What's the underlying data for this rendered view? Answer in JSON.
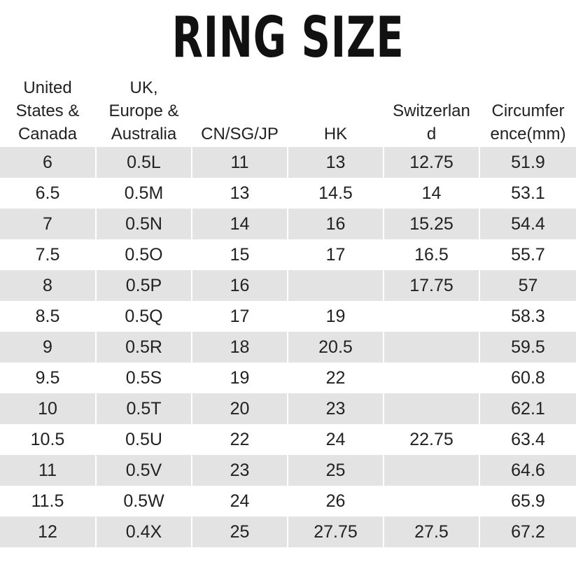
{
  "title": "RING SIZE",
  "headers": [
    "United\nStates &\nCanada",
    "UK,\nEurope &\nAustralia",
    "CN/SG/JP",
    "HK",
    "Switzerlan\nd",
    "Circumfer\nence(mm)"
  ],
  "rows": [
    [
      "6",
      "0.5L",
      "11",
      "13",
      "12.75",
      "51.9"
    ],
    [
      "6.5",
      "0.5M",
      "13",
      "14.5",
      "14",
      "53.1"
    ],
    [
      "7",
      "0.5N",
      "14",
      "16",
      "15.25",
      "54.4"
    ],
    [
      "7.5",
      "0.5O",
      "15",
      "17",
      "16.5",
      "55.7"
    ],
    [
      "8",
      "0.5P",
      "16",
      "",
      "17.75",
      "57"
    ],
    [
      "8.5",
      "0.5Q",
      "17",
      "19",
      "",
      "58.3"
    ],
    [
      "9",
      "0.5R",
      "18",
      "20.5",
      "",
      "59.5"
    ],
    [
      "9.5",
      "0.5S",
      "19",
      "22",
      "",
      "60.8"
    ],
    [
      "10",
      "0.5T",
      "20",
      "23",
      "",
      "62.1"
    ],
    [
      "10.5",
      "0.5U",
      "22",
      "24",
      "22.75",
      "63.4"
    ],
    [
      "11",
      "0.5V",
      "23",
      "25",
      "",
      "64.6"
    ],
    [
      "11.5",
      "0.5W",
      "24",
      "26",
      "",
      "65.9"
    ],
    [
      "12",
      "0.4X",
      "25",
      "27.75",
      "27.5",
      "67.2"
    ]
  ]
}
